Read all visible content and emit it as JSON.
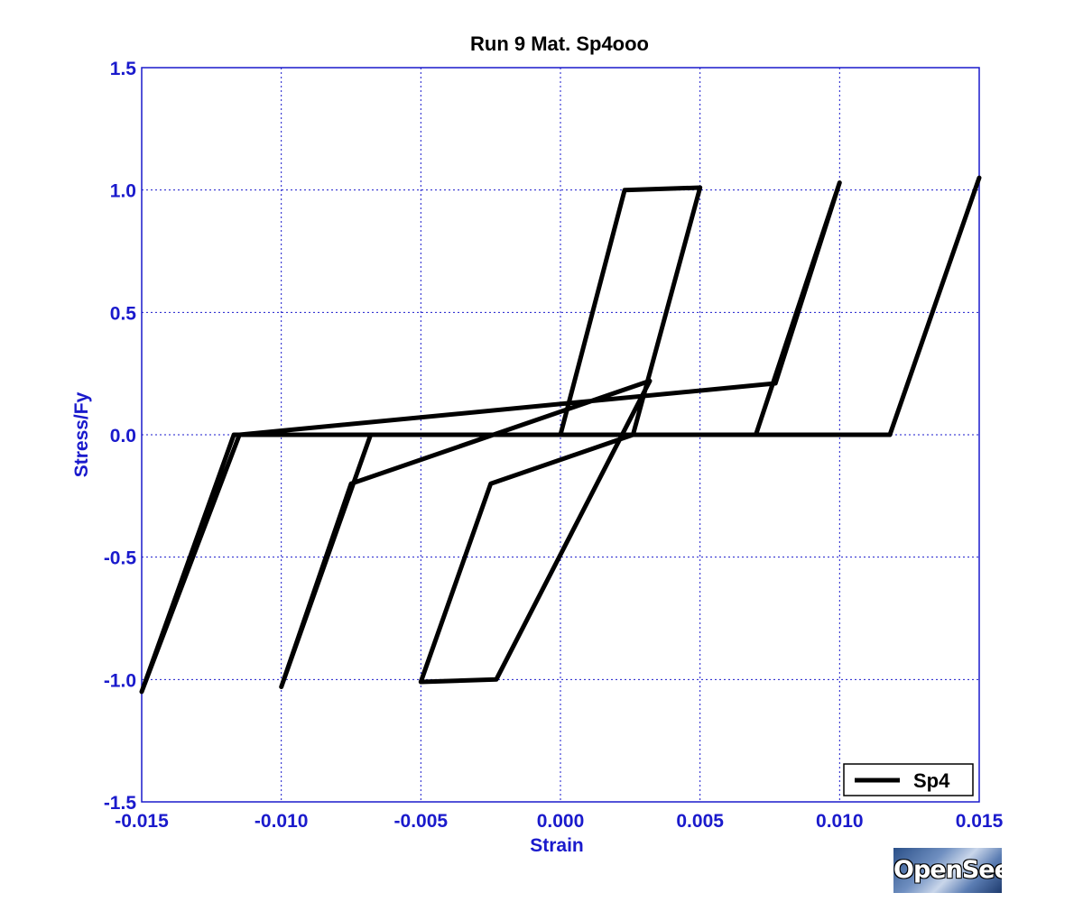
{
  "chart_data": {
    "type": "line",
    "title": "Run 9   Mat. Sp4ooo",
    "xlabel": "Strain",
    "ylabel": "Stress/Fy",
    "xlim": [
      -0.015,
      0.015
    ],
    "ylim": [
      -1.5,
      1.5
    ],
    "xticks": [
      "-0.015",
      "-0.010",
      "-0.005",
      "0.000",
      "0.005",
      "0.010",
      "0.015"
    ],
    "xtick_values": [
      -0.015,
      -0.01,
      -0.005,
      0.0,
      0.005,
      0.01,
      0.015
    ],
    "yticks": [
      "1.5",
      "1.0",
      "0.5",
      "0.0",
      "-0.5",
      "-1.0",
      "-1.5"
    ],
    "ytick_values": [
      1.5,
      1.0,
      0.5,
      0.0,
      -0.5,
      -1.0,
      -1.5
    ],
    "grid": true,
    "legend_position": "bottom-right",
    "series": [
      {
        "name": "Sp4",
        "color": "#000000",
        "x": [
          0,
          0.0023,
          0.005,
          0.0026,
          -0.0025,
          -0.005,
          -0.0023,
          0.0032,
          -0.0075,
          -0.01,
          -0.0068,
          0.007,
          0.01,
          0.0077,
          -0.0115,
          -0.015,
          -0.0117,
          0.0118,
          0.015
        ],
        "y": [
          0,
          1.0,
          1.01,
          0.0,
          -0.2,
          -1.01,
          -1.0,
          0.22,
          -0.2,
          -1.03,
          0.0,
          0.0,
          1.03,
          0.21,
          0.0,
          -1.05,
          0.0,
          0.0,
          1.05
        ]
      }
    ]
  },
  "logo_text": "OpenSees"
}
